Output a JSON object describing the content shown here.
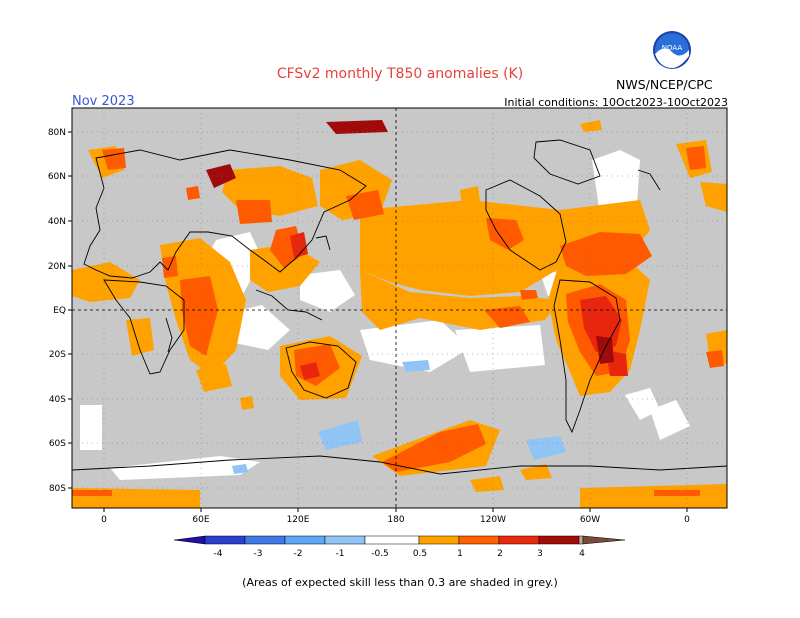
{
  "header": {
    "title": "CFSv2 monthly T850 anomalies (K)",
    "period": "Nov 2023",
    "initial_conditions": "Initial conditions: 10Oct2023-10Oct2023",
    "organization": "NWS/NCEP/CPC",
    "logo_text": "NOAA"
  },
  "map": {
    "lat_labels": [
      "80N",
      "60N",
      "40N",
      "20N",
      "EQ",
      "20S",
      "40S",
      "60S",
      "80S"
    ],
    "lon_labels": [
      "0",
      "60E",
      "120E",
      "180",
      "120W",
      "60W",
      "0"
    ]
  },
  "colorbar": {
    "labels": [
      "-4",
      "-3",
      "-2",
      "-1",
      "-0.5",
      "0.5",
      "1",
      "2",
      "3",
      "4"
    ],
    "colors": [
      "#1d0fa8",
      "#2a3fd0",
      "#3f79e6",
      "#5ea7f2",
      "#8fc4f5",
      "#ffffff",
      "#ffa200",
      "#ff6000",
      "#e82a0c",
      "#a50a0a",
      "#c9a397",
      "#7a4a3a"
    ]
  },
  "footer": {
    "skill_note": "(Areas of expected skill less than 0.3 are shaded in grey.)"
  },
  "colors": {
    "grey": "#c8c8c8",
    "weak_positive": "#ffa200",
    "moderate_positive": "#ff5a00",
    "strong_positive": "#e8260e",
    "very_strong_positive": "#a00a0a",
    "weak_negative": "#8fc4f5"
  }
}
